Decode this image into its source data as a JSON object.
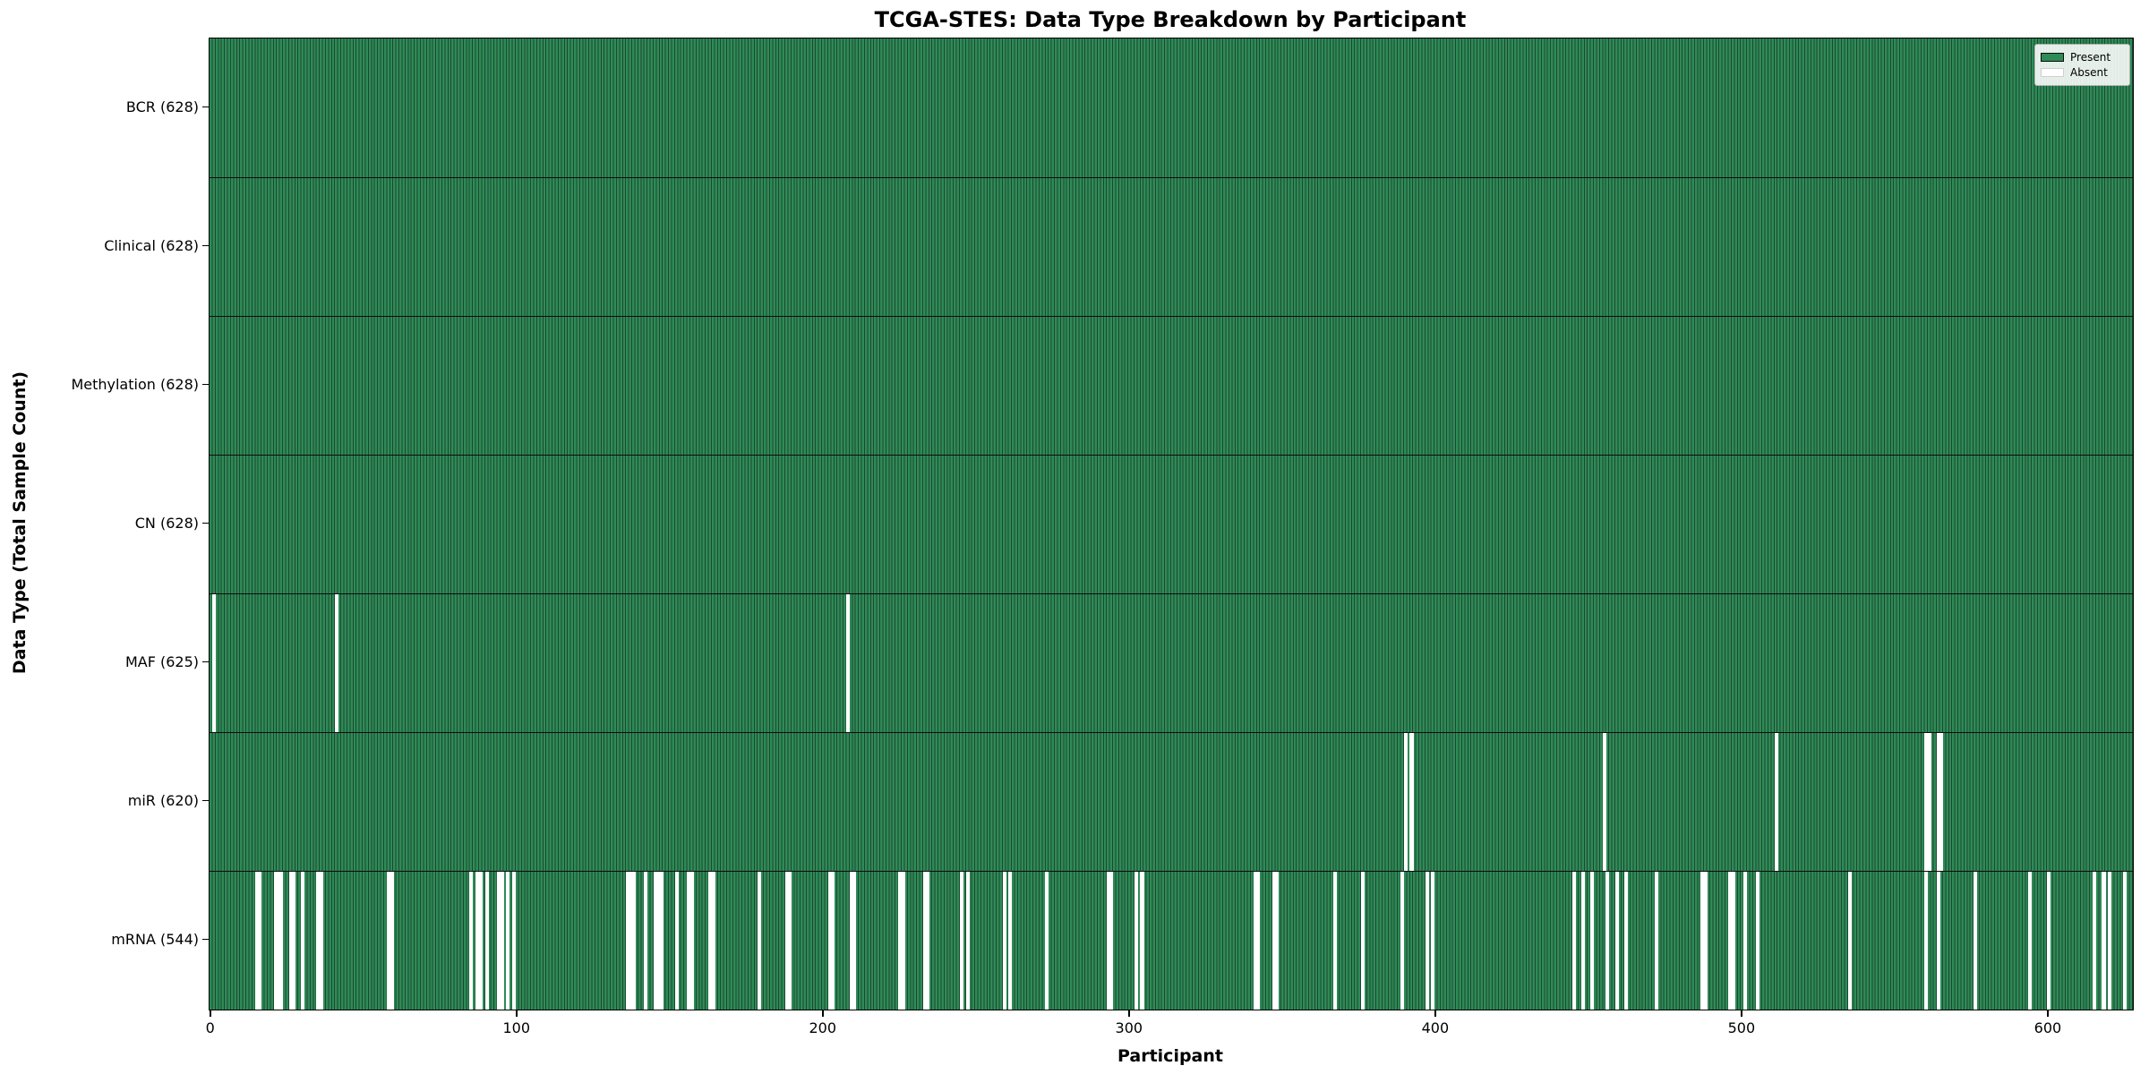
{
  "title": "TCGA-STES: Data Type Breakdown by Participant",
  "axes": {
    "xlabel": "Participant",
    "ylabel": "Data Type (Total Sample Count)"
  },
  "legend": {
    "entries": [
      {
        "label": "Present",
        "color": "#2e8b57",
        "edge": "#0d0d0d"
      },
      {
        "label": "Absent",
        "color": "#ffffff",
        "edge": "#cfcfcf"
      }
    ]
  },
  "chart_data": {
    "type": "heatmap",
    "title": "TCGA-STES: Data Type Breakdown by Participant",
    "xlabel": "Participant",
    "ylabel": "Data Type (Total Sample Count)",
    "legend": [
      "Present",
      "Absent"
    ],
    "legend_position": "upper right",
    "x_ticks": [
      0,
      100,
      200,
      300,
      400,
      500,
      600
    ],
    "x_range": [
      -0.5,
      627.5
    ],
    "n_participants": 628,
    "colors": {
      "present": "#2e8b57",
      "bar_edge": "#1d4730",
      "absent": "#ffffff"
    },
    "rows": [
      {
        "label": "BCR (628)",
        "data_type": "BCR",
        "present_count": 628,
        "absent_participants": []
      },
      {
        "label": "Clinical (628)",
        "data_type": "Clinical",
        "present_count": 628,
        "absent_participants": []
      },
      {
        "label": "Methylation (628)",
        "data_type": "Methylation",
        "present_count": 628,
        "absent_participants": []
      },
      {
        "label": "CN (628)",
        "data_type": "CN",
        "present_count": 628,
        "absent_participants": []
      },
      {
        "label": "MAF (625)",
        "data_type": "MAF",
        "present_count": 625,
        "absent_participants": [
          1,
          41,
          208
        ]
      },
      {
        "label": "miR (620)",
        "data_type": "miR",
        "present_count": 620,
        "absent_participants": [
          390,
          392,
          455,
          511,
          560,
          561,
          564,
          565
        ]
      },
      {
        "label": "mRNA (544)",
        "data_type": "mRNA",
        "present_count": 544,
        "absent_participants": [
          15,
          16,
          21,
          22,
          23,
          26,
          27,
          30,
          35,
          36,
          58,
          59,
          85,
          87,
          88,
          90,
          94,
          95,
          97,
          99,
          136,
          137,
          138,
          142,
          145,
          146,
          147,
          152,
          156,
          157,
          163,
          164,
          179,
          188,
          189,
          202,
          203,
          209,
          210,
          225,
          226,
          233,
          234,
          245,
          247,
          259,
          261,
          273,
          293,
          294,
          302,
          304,
          341,
          342,
          347,
          348,
          367,
          376,
          389,
          397,
          399,
          445,
          448,
          451,
          456,
          459,
          462,
          472,
          487,
          488,
          496,
          497,
          501,
          505,
          535,
          560,
          564,
          576,
          594,
          600,
          615,
          618,
          620,
          625
        ]
      }
    ]
  }
}
